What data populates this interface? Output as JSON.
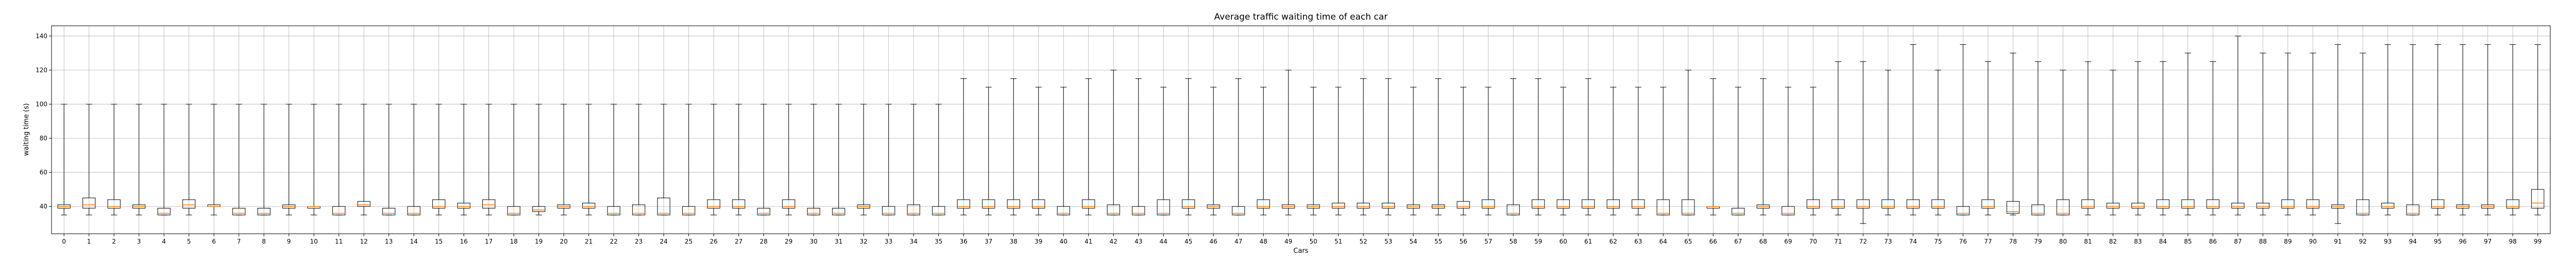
{
  "chart_data": {
    "type": "box",
    "title": "Average traffic waiting time of each car",
    "xlabel": "Cars",
    "ylabel": "waiting time (s)",
    "ylim": [
      24,
      146
    ],
    "yticks": [
      40,
      60,
      80,
      100,
      120,
      140
    ],
    "grid": true,
    "colors": {
      "box": "#000000",
      "median": "#ff7f0e",
      "grid": "#b0b0b0"
    },
    "categories": [
      "0",
      "1",
      "2",
      "3",
      "4",
      "5",
      "6",
      "7",
      "8",
      "9",
      "10",
      "11",
      "12",
      "13",
      "14",
      "15",
      "16",
      "17",
      "18",
      "19",
      "20",
      "21",
      "22",
      "23",
      "24",
      "25",
      "26",
      "27",
      "28",
      "29",
      "30",
      "31",
      "32",
      "33",
      "34",
      "35",
      "36",
      "37",
      "38",
      "39",
      "40",
      "41",
      "42",
      "43",
      "44",
      "45",
      "46",
      "47",
      "48",
      "49",
      "50",
      "51",
      "52",
      "53",
      "54",
      "55",
      "56",
      "57",
      "58",
      "59",
      "60",
      "61",
      "62",
      "63",
      "64",
      "65",
      "66",
      "67",
      "68",
      "69",
      "70",
      "71",
      "72",
      "73",
      "74",
      "75",
      "76",
      "77",
      "78",
      "79",
      "80",
      "81",
      "82",
      "83",
      "84",
      "85",
      "86",
      "87",
      "88",
      "89",
      "90",
      "91",
      "92",
      "93",
      "94",
      "95",
      "96",
      "97",
      "98",
      "99"
    ],
    "boxes": [
      {
        "whislo": 35,
        "q1": 39,
        "med": 40,
        "q3": 41,
        "whishi": 100
      },
      {
        "whislo": 35,
        "q1": 39,
        "med": 41,
        "q3": 45,
        "whishi": 100
      },
      {
        "whislo": 35,
        "q1": 39,
        "med": 40,
        "q3": 44,
        "whishi": 100
      },
      {
        "whislo": 35,
        "q1": 39,
        "med": 40,
        "q3": 41,
        "whishi": 100
      },
      {
        "whislo": 35,
        "q1": 35,
        "med": 36,
        "q3": 39,
        "whishi": 100
      },
      {
        "whislo": 35,
        "q1": 39,
        "med": 41,
        "q3": 44,
        "whishi": 100
      },
      {
        "whislo": 35,
        "q1": 40,
        "med": 40,
        "q3": 41,
        "whishi": 100
      },
      {
        "whislo": 35,
        "q1": 35,
        "med": 36,
        "q3": 39,
        "whishi": 100
      },
      {
        "whislo": 35,
        "q1": 35,
        "med": 36,
        "q3": 39,
        "whishi": 100
      },
      {
        "whislo": 35,
        "q1": 39,
        "med": 40,
        "q3": 41,
        "whishi": 100
      },
      {
        "whislo": 35,
        "q1": 39,
        "med": 40,
        "q3": 40,
        "whishi": 100
      },
      {
        "whislo": 35,
        "q1": 35,
        "med": 36,
        "q3": 40,
        "whishi": 100
      },
      {
        "whislo": 35,
        "q1": 40,
        "med": 41,
        "q3": 43,
        "whishi": 100
      },
      {
        "whislo": 35,
        "q1": 35,
        "med": 36,
        "q3": 39,
        "whishi": 100
      },
      {
        "whislo": 35,
        "q1": 35,
        "med": 36,
        "q3": 40,
        "whishi": 100
      },
      {
        "whislo": 35,
        "q1": 39,
        "med": 40,
        "q3": 44,
        "whishi": 100
      },
      {
        "whislo": 35,
        "q1": 39,
        "med": 40,
        "q3": 42,
        "whishi": 100
      },
      {
        "whislo": 35,
        "q1": 39,
        "med": 41,
        "q3": 44,
        "whishi": 100
      },
      {
        "whislo": 35,
        "q1": 35,
        "med": 36,
        "q3": 40,
        "whishi": 100
      },
      {
        "whislo": 35,
        "q1": 37,
        "med": 38,
        "q3": 40,
        "whishi": 100
      },
      {
        "whislo": 35,
        "q1": 39,
        "med": 40,
        "q3": 41,
        "whishi": 100
      },
      {
        "whislo": 35,
        "q1": 39,
        "med": 40,
        "q3": 42,
        "whishi": 100
      },
      {
        "whislo": 35,
        "q1": 35,
        "med": 36,
        "q3": 40,
        "whishi": 100
      },
      {
        "whislo": 35,
        "q1": 35,
        "med": 36,
        "q3": 41,
        "whishi": 100
      },
      {
        "whislo": 35,
        "q1": 35,
        "med": 36,
        "q3": 45,
        "whishi": 100
      },
      {
        "whislo": 35,
        "q1": 35,
        "med": 36,
        "q3": 40,
        "whishi": 100
      },
      {
        "whislo": 35,
        "q1": 39,
        "med": 40,
        "q3": 44,
        "whishi": 100
      },
      {
        "whislo": 35,
        "q1": 39,
        "med": 40,
        "q3": 44,
        "whishi": 100
      },
      {
        "whislo": 35,
        "q1": 35,
        "med": 36,
        "q3": 39,
        "whishi": 100
      },
      {
        "whislo": 35,
        "q1": 39,
        "med": 40,
        "q3": 44,
        "whishi": 100
      },
      {
        "whislo": 35,
        "q1": 35,
        "med": 36,
        "q3": 39,
        "whishi": 100
      },
      {
        "whislo": 35,
        "q1": 35,
        "med": 36,
        "q3": 39,
        "whishi": 100
      },
      {
        "whislo": 35,
        "q1": 39,
        "med": 40,
        "q3": 41,
        "whishi": 100
      },
      {
        "whislo": 35,
        "q1": 35,
        "med": 36,
        "q3": 40,
        "whishi": 100
      },
      {
        "whislo": 35,
        "q1": 35,
        "med": 36,
        "q3": 41,
        "whishi": 100
      },
      {
        "whislo": 35,
        "q1": 35,
        "med": 36,
        "q3": 40,
        "whishi": 100
      },
      {
        "whislo": 35,
        "q1": 39,
        "med": 40,
        "q3": 44,
        "whishi": 115
      },
      {
        "whislo": 35,
        "q1": 39,
        "med": 40,
        "q3": 44,
        "whishi": 110
      },
      {
        "whislo": 35,
        "q1": 39,
        "med": 40,
        "q3": 44,
        "whishi": 115
      },
      {
        "whislo": 35,
        "q1": 39,
        "med": 40,
        "q3": 44,
        "whishi": 110
      },
      {
        "whislo": 35,
        "q1": 35,
        "med": 36,
        "q3": 40,
        "whishi": 110
      },
      {
        "whislo": 35,
        "q1": 39,
        "med": 40,
        "q3": 44,
        "whishi": 115
      },
      {
        "whislo": 35,
        "q1": 35,
        "med": 36,
        "q3": 41,
        "whishi": 120
      },
      {
        "whislo": 35,
        "q1": 35,
        "med": 36,
        "q3": 40,
        "whishi": 115
      },
      {
        "whislo": 35,
        "q1": 35,
        "med": 36,
        "q3": 44,
        "whishi": 110
      },
      {
        "whislo": 35,
        "q1": 39,
        "med": 40,
        "q3": 44,
        "whishi": 115
      },
      {
        "whislo": 35,
        "q1": 39,
        "med": 40,
        "q3": 41,
        "whishi": 110
      },
      {
        "whislo": 35,
        "q1": 35,
        "med": 36,
        "q3": 40,
        "whishi": 115
      },
      {
        "whislo": 35,
        "q1": 39,
        "med": 40,
        "q3": 44,
        "whishi": 110
      },
      {
        "whislo": 35,
        "q1": 39,
        "med": 40,
        "q3": 41,
        "whishi": 120
      },
      {
        "whislo": 35,
        "q1": 39,
        "med": 40,
        "q3": 41,
        "whishi": 110
      },
      {
        "whislo": 35,
        "q1": 39,
        "med": 40,
        "q3": 42,
        "whishi": 110
      },
      {
        "whislo": 35,
        "q1": 39,
        "med": 40,
        "q3": 42,
        "whishi": 115
      },
      {
        "whislo": 35,
        "q1": 39,
        "med": 40,
        "q3": 42,
        "whishi": 115
      },
      {
        "whislo": 35,
        "q1": 39,
        "med": 40,
        "q3": 41,
        "whishi": 110
      },
      {
        "whislo": 35,
        "q1": 39,
        "med": 40,
        "q3": 41,
        "whishi": 115
      },
      {
        "whislo": 35,
        "q1": 39,
        "med": 40,
        "q3": 43,
        "whishi": 110
      },
      {
        "whislo": 35,
        "q1": 39,
        "med": 40,
        "q3": 44,
        "whishi": 110
      },
      {
        "whislo": 35,
        "q1": 35,
        "med": 36,
        "q3": 41,
        "whishi": 115
      },
      {
        "whislo": 35,
        "q1": 39,
        "med": 40,
        "q3": 44,
        "whishi": 115
      },
      {
        "whislo": 35,
        "q1": 39,
        "med": 40,
        "q3": 44,
        "whishi": 110
      },
      {
        "whislo": 35,
        "q1": 39,
        "med": 40,
        "q3": 44,
        "whishi": 115
      },
      {
        "whislo": 35,
        "q1": 39,
        "med": 40,
        "q3": 44,
        "whishi": 110
      },
      {
        "whislo": 35,
        "q1": 39,
        "med": 40,
        "q3": 44,
        "whishi": 110
      },
      {
        "whislo": 35,
        "q1": 35,
        "med": 36,
        "q3": 44,
        "whishi": 110
      },
      {
        "whislo": 35,
        "q1": 35,
        "med": 36,
        "q3": 44,
        "whishi": 120
      },
      {
        "whislo": 35,
        "q1": 39,
        "med": 40,
        "q3": 40,
        "whishi": 115
      },
      {
        "whislo": 35,
        "q1": 35,
        "med": 36,
        "q3": 39,
        "whishi": 110
      },
      {
        "whislo": 35,
        "q1": 39,
        "med": 40,
        "q3": 41,
        "whishi": 115
      },
      {
        "whislo": 35,
        "q1": 35,
        "med": 36,
        "q3": 40,
        "whishi": 110
      },
      {
        "whislo": 35,
        "q1": 39,
        "med": 40,
        "q3": 44,
        "whishi": 110
      },
      {
        "whislo": 35,
        "q1": 39,
        "med": 40,
        "q3": 44,
        "whishi": 125
      },
      {
        "whislo": 30,
        "q1": 39,
        "med": 40,
        "q3": 44,
        "whishi": 125
      },
      {
        "whislo": 35,
        "q1": 39,
        "med": 40,
        "q3": 44,
        "whishi": 120
      },
      {
        "whislo": 35,
        "q1": 39,
        "med": 40,
        "q3": 44,
        "whishi": 135
      },
      {
        "whislo": 35,
        "q1": 39,
        "med": 40,
        "q3": 44,
        "whishi": 120
      },
      {
        "whislo": 35,
        "q1": 35,
        "med": 36,
        "q3": 40,
        "whishi": 135
      },
      {
        "whislo": 35,
        "q1": 39,
        "med": 40,
        "q3": 44,
        "whishi": 125
      },
      {
        "whislo": 35,
        "q1": 36,
        "med": 37,
        "q3": 43,
        "whishi": 130
      },
      {
        "whislo": 35,
        "q1": 35,
        "med": 36,
        "q3": 41,
        "whishi": 125
      },
      {
        "whislo": 35,
        "q1": 35,
        "med": 36,
        "q3": 44,
        "whishi": 120
      },
      {
        "whislo": 35,
        "q1": 39,
        "med": 40,
        "q3": 44,
        "whishi": 125
      },
      {
        "whislo": 35,
        "q1": 39,
        "med": 40,
        "q3": 42,
        "whishi": 120
      },
      {
        "whislo": 35,
        "q1": 39,
        "med": 40,
        "q3": 42,
        "whishi": 125
      },
      {
        "whislo": 35,
        "q1": 39,
        "med": 40,
        "q3": 44,
        "whishi": 125
      },
      {
        "whislo": 35,
        "q1": 39,
        "med": 40,
        "q3": 44,
        "whishi": 130
      },
      {
        "whislo": 35,
        "q1": 39,
        "med": 40,
        "q3": 44,
        "whishi": 125
      },
      {
        "whislo": 35,
        "q1": 39,
        "med": 40,
        "q3": 42,
        "whishi": 140
      },
      {
        "whislo": 35,
        "q1": 39,
        "med": 40,
        "q3": 42,
        "whishi": 130
      },
      {
        "whislo": 35,
        "q1": 39,
        "med": 40,
        "q3": 44,
        "whishi": 130
      },
      {
        "whislo": 35,
        "q1": 39,
        "med": 40,
        "q3": 44,
        "whishi": 130
      },
      {
        "whislo": 30,
        "q1": 39,
        "med": 40,
        "q3": 41,
        "whishi": 135
      },
      {
        "whislo": 35,
        "q1": 35,
        "med": 36,
        "q3": 44,
        "whishi": 130
      },
      {
        "whislo": 35,
        "q1": 39,
        "med": 40,
        "q3": 42,
        "whishi": 135
      },
      {
        "whislo": 35,
        "q1": 35,
        "med": 36,
        "q3": 41,
        "whishi": 135
      },
      {
        "whislo": 35,
        "q1": 39,
        "med": 40,
        "q3": 44,
        "whishi": 135
      },
      {
        "whislo": 35,
        "q1": 39,
        "med": 40,
        "q3": 41,
        "whishi": 135
      },
      {
        "whislo": 35,
        "q1": 39,
        "med": 40,
        "q3": 41,
        "whishi": 135
      },
      {
        "whislo": 35,
        "q1": 39,
        "med": 40,
        "q3": 44,
        "whishi": 135
      },
      {
        "whislo": 35,
        "q1": 39,
        "med": 42,
        "q3": 50,
        "whishi": 135
      }
    ]
  }
}
